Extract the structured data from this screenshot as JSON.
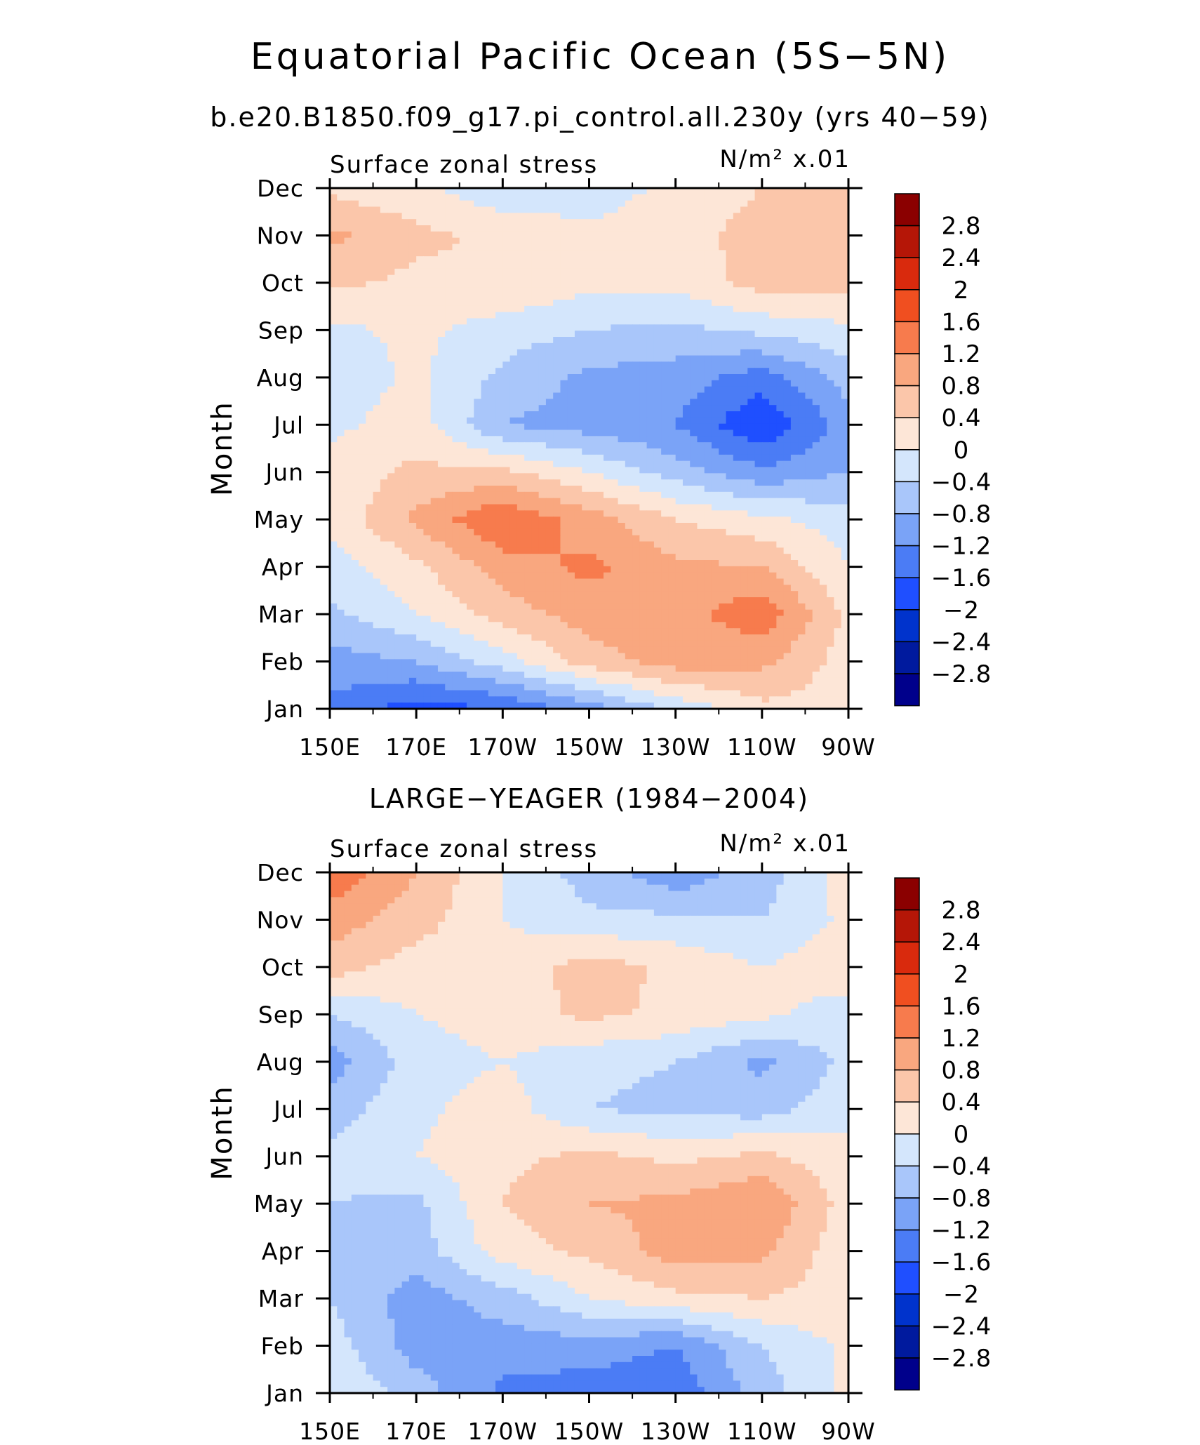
{
  "figure": {
    "title": "Equatorial Pacific Ocean (5S−5N)",
    "subtitle": "b.e20.B1850.f09_g17.pi_control.all.230y (yrs 40−59)"
  },
  "chart_data": [
    {
      "type": "heatmap",
      "title": "",
      "left_label": "Surface zonal stress",
      "right_label": "N/m² x.01",
      "xlabel": "",
      "ylabel": "Month",
      "x": [
        "150E",
        "170E",
        "170W",
        "150W",
        "130W",
        "110W",
        "90W"
      ],
      "x_deg_east": [
        150,
        170,
        190,
        210,
        230,
        250,
        270
      ],
      "y": [
        "Jan",
        "Feb",
        "Mar",
        "Apr",
        "May",
        "Jun",
        "Jul",
        "Aug",
        "Sep",
        "Oct",
        "Nov",
        "Dec"
      ],
      "xlim": [
        150,
        270
      ],
      "ylim": [
        "Jan",
        "Dec"
      ],
      "colorbar_levels": [
        -2.8,
        -2.4,
        -2,
        -1.6,
        -1.2,
        -0.8,
        -0.4,
        0,
        0.4,
        0.8,
        1.2,
        1.6,
        2,
        2.4,
        2.8
      ],
      "colorbar_labels": [
        "2.8",
        "2.4",
        "2",
        "1.6",
        "1.2",
        "0.8",
        "0.4",
        "0",
        "−0.4",
        "−0.8",
        "−1.2",
        "−1.6",
        "−2",
        "−2.4",
        "−2.8"
      ],
      "z": [
        [
          -1.3,
          -1.8,
          -1.6,
          -1.0,
          -0.3,
          0.3,
          0.2
        ],
        [
          -1.0,
          -0.8,
          -0.2,
          0.6,
          1.0,
          0.9,
          0.2
        ],
        [
          -0.5,
          0.0,
          0.6,
          1.0,
          1.0,
          1.5,
          0.3
        ],
        [
          -0.2,
          0.3,
          1.0,
          1.3,
          0.9,
          0.8,
          0.0
        ],
        [
          0.1,
          0.9,
          1.6,
          1.0,
          0.4,
          0.1,
          -0.2
        ],
        [
          0.1,
          0.5,
          0.5,
          0.0,
          -0.6,
          -1.1,
          -0.8
        ],
        [
          -0.1,
          0.2,
          -0.8,
          -1.0,
          -1.2,
          -2.0,
          -1.0
        ],
        [
          -0.3,
          0.1,
          -0.5,
          -0.9,
          -1.0,
          -1.4,
          -0.6
        ],
        [
          -0.1,
          0.1,
          -0.2,
          -0.4,
          -0.5,
          -0.3,
          -0.1
        ],
        [
          0.5,
          0.3,
          0.4,
          0.1,
          0.1,
          0.6,
          0.6
        ],
        [
          0.9,
          0.5,
          0.3,
          0.1,
          0.2,
          0.6,
          0.5
        ],
        [
          0.3,
          0.1,
          -0.3,
          -0.2,
          0.1,
          0.4,
          0.4
        ]
      ]
    },
    {
      "type": "heatmap",
      "title": "LARGE−YEAGER (1984−2004)",
      "left_label": "Surface zonal stress",
      "right_label": "N/m² x.01",
      "xlabel": "",
      "ylabel": "Month",
      "x": [
        "150E",
        "170E",
        "170W",
        "150W",
        "130W",
        "110W",
        "90W"
      ],
      "x_deg_east": [
        150,
        170,
        190,
        210,
        230,
        250,
        270
      ],
      "y": [
        "Jan",
        "Feb",
        "Mar",
        "Apr",
        "May",
        "Jun",
        "Jul",
        "Aug",
        "Sep",
        "Oct",
        "Nov",
        "Dec"
      ],
      "xlim": [
        150,
        270
      ],
      "ylim": [
        "Jan",
        "Dec"
      ],
      "colorbar_levels": [
        -2.8,
        -2.4,
        -2,
        -1.6,
        -1.2,
        -0.8,
        -0.4,
        0,
        0.4,
        0.8,
        1.2,
        1.6,
        2,
        2.4,
        2.8
      ],
      "colorbar_labels": [
        "2.8",
        "2.4",
        "2",
        "1.6",
        "1.2",
        "0.8",
        "0.4",
        "0",
        "−0.4",
        "−0.8",
        "−1.2",
        "−1.6",
        "−2",
        "−2.4",
        "−2.8"
      ],
      "z": [
        [
          0.0,
          -0.6,
          -1.3,
          -1.4,
          -1.5,
          -0.6,
          0.1
        ],
        [
          -0.2,
          -1.0,
          -1.0,
          -1.0,
          -1.2,
          -0.4,
          0.1
        ],
        [
          -0.4,
          -1.0,
          -0.6,
          0.0,
          0.3,
          0.4,
          0.2
        ],
        [
          -0.5,
          -0.6,
          0.2,
          0.5,
          1.0,
          0.9,
          0.1
        ],
        [
          -0.4,
          -0.5,
          0.4,
          0.8,
          0.9,
          1.2,
          0.2
        ],
        [
          -0.3,
          0.0,
          0.3,
          0.5,
          0.3,
          0.5,
          0.1
        ],
        [
          -0.6,
          -0.1,
          0.2,
          -0.4,
          -0.5,
          -0.6,
          -0.1
        ],
        [
          -1.0,
          -0.2,
          0.0,
          -0.3,
          -0.4,
          -0.9,
          -0.3
        ],
        [
          -0.4,
          0.0,
          0.2,
          0.5,
          0.3,
          0.1,
          -0.2
        ],
        [
          0.6,
          0.2,
          0.1,
          0.6,
          0.3,
          0.0,
          0.3
        ],
        [
          1.0,
          0.6,
          0.0,
          -0.3,
          -0.3,
          -0.4,
          0.1
        ],
        [
          1.5,
          0.8,
          0.0,
          -0.6,
          -1.1,
          -0.6,
          0.2
        ]
      ]
    }
  ],
  "colors": {
    "scale": [
      "#00008b",
      "#001a9e",
      "#0033cc",
      "#1f4fff",
      "#4b7cf5",
      "#7aa3f7",
      "#a9c6fa",
      "#d4e6fc",
      "#fde6d7",
      "#fbc6aa",
      "#f9a77f",
      "#f77b4d",
      "#f04f20",
      "#d92a0d",
      "#b51607",
      "#8b0000"
    ]
  }
}
